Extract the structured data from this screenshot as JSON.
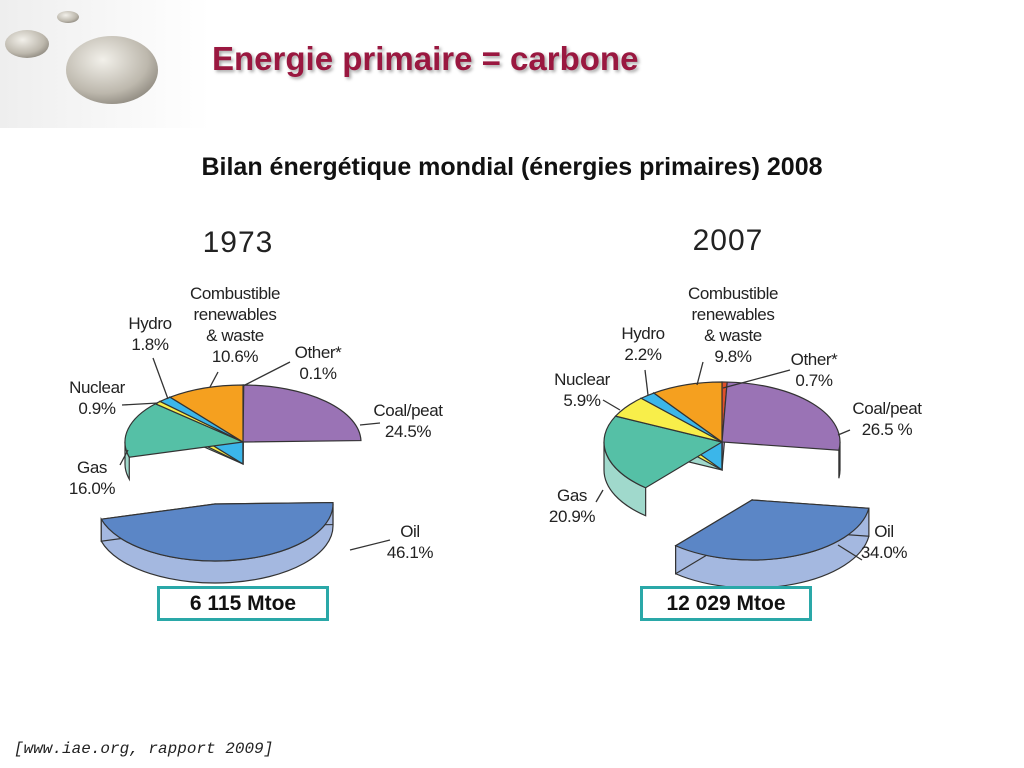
{
  "slide": {
    "title": "Energie primaire = carbone",
    "subtitle": "Bilan énergétique mondial (énergies primaires) 2008",
    "source": "[www.iae.org, rapport 2009]"
  },
  "colors": {
    "title": "#9a1840",
    "box_border": "#2aa8a8",
    "coal": "#9a73b5",
    "coal_side": "#b89ccd",
    "oil": "#5b86c6",
    "oil_side": "#a4b8e0",
    "gas": "#55c0a6",
    "gas_side": "#a0d9cc",
    "nuclear": "#f8ee4a",
    "hydro": "#3bb6ea",
    "combustible": "#f5a01f",
    "other": "#e0502a"
  },
  "chart_data": [
    {
      "type": "pie",
      "title": "1973",
      "total": "6 115 Mtoe",
      "slices": [
        {
          "key": "other",
          "name": "Other*",
          "value": 0.1,
          "label": "0.1%"
        },
        {
          "key": "coal",
          "name": "Coal/peat",
          "value": 24.5,
          "label": "24.5%"
        },
        {
          "key": "oil",
          "name": "Oil",
          "value": 46.1,
          "label": "46.1%",
          "exploded": true
        },
        {
          "key": "gas",
          "name": "Gas",
          "value": 16.0,
          "label": "16.0%"
        },
        {
          "key": "nuclear",
          "name": "Nuclear",
          "value": 0.9,
          "label": "0.9%"
        },
        {
          "key": "hydro",
          "name": "Hydro",
          "value": 1.8,
          "label": "1.8%"
        },
        {
          "key": "combustible",
          "name": "Combustible renewables & waste",
          "name_lines": [
            "Combustible",
            "renewables",
            "& waste"
          ],
          "value": 10.6,
          "label": "10.6%"
        }
      ]
    },
    {
      "type": "pie",
      "title": "2007",
      "total": "12 029 Mtoe",
      "slices": [
        {
          "key": "other",
          "name": "Other*",
          "value": 0.7,
          "label": "0.7%"
        },
        {
          "key": "coal",
          "name": "Coal/peat",
          "value": 26.5,
          "label": "26.5 %"
        },
        {
          "key": "oil",
          "name": "Oil",
          "value": 34.0,
          "label": "34.0%",
          "exploded": true
        },
        {
          "key": "gas",
          "name": "Gas",
          "value": 20.9,
          "label": "20.9%"
        },
        {
          "key": "nuclear",
          "name": "Nuclear",
          "value": 5.9,
          "label": "5.9%"
        },
        {
          "key": "hydro",
          "name": "Hydro",
          "value": 2.2,
          "label": "2.2%"
        },
        {
          "key": "combustible",
          "name": "Combustible renewables & waste",
          "name_lines": [
            "Combustible",
            "renewables",
            "& waste"
          ],
          "value": 9.8,
          "label": "9.8%"
        }
      ]
    }
  ]
}
